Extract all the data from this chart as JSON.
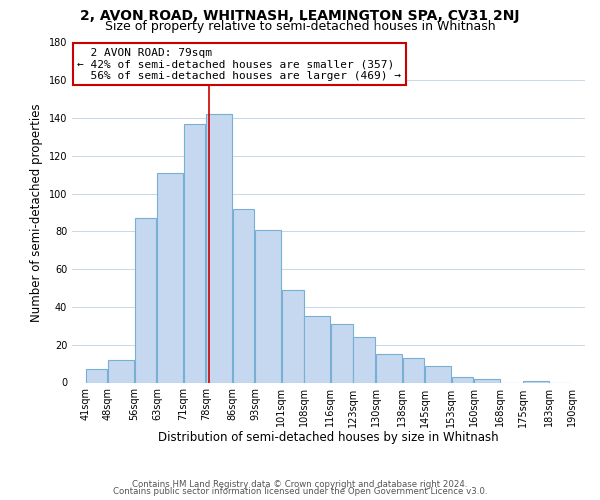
{
  "title": "2, AVON ROAD, WHITNASH, LEAMINGTON SPA, CV31 2NJ",
  "subtitle": "Size of property relative to semi-detached houses in Whitnash",
  "xlabel": "Distribution of semi-detached houses by size in Whitnash",
  "ylabel": "Number of semi-detached properties",
  "footer_lines": [
    "Contains HM Land Registry data © Crown copyright and database right 2024.",
    "Contains public sector information licensed under the Open Government Licence v3.0."
  ],
  "bar_left_edges": [
    41,
    48,
    56,
    63,
    71,
    78,
    86,
    93,
    101,
    108,
    116,
    123,
    130,
    138,
    145,
    153,
    160,
    168,
    175,
    183
  ],
  "bar_widths": [
    7,
    8,
    7,
    8,
    7,
    8,
    7,
    8,
    7,
    8,
    7,
    7,
    8,
    7,
    8,
    7,
    8,
    7,
    8,
    7
  ],
  "bar_heights": [
    7,
    12,
    87,
    111,
    137,
    142,
    92,
    81,
    49,
    35,
    31,
    24,
    15,
    13,
    9,
    3,
    2,
    0,
    1,
    0
  ],
  "bar_color": "#c5d8f0",
  "bar_edge_color": "#7aafd4",
  "marker_x": 79,
  "marker_label": "2 AVON ROAD: 79sqm",
  "pct_smaller": 42,
  "count_smaller": 357,
  "pct_larger": 56,
  "count_larger": 469,
  "marker_line_color": "#cc0000",
  "annotation_box_edge_color": "#cc0000",
  "ylim": [
    0,
    180
  ],
  "yticks": [
    0,
    20,
    40,
    60,
    80,
    100,
    120,
    140,
    160,
    180
  ],
  "xtick_labels": [
    "41sqm",
    "48sqm",
    "56sqm",
    "63sqm",
    "71sqm",
    "78sqm",
    "86sqm",
    "93sqm",
    "101sqm",
    "108sqm",
    "116sqm",
    "123sqm",
    "130sqm",
    "138sqm",
    "145sqm",
    "153sqm",
    "160sqm",
    "168sqm",
    "175sqm",
    "183sqm",
    "190sqm"
  ],
  "xtick_positions": [
    41,
    48,
    56,
    63,
    71,
    78,
    86,
    93,
    101,
    108,
    116,
    123,
    130,
    138,
    145,
    153,
    160,
    168,
    175,
    183,
    190
  ],
  "title_fontsize": 10,
  "subtitle_fontsize": 9,
  "axis_label_fontsize": 8.5,
  "tick_fontsize": 7,
  "annotation_fontsize": 8,
  "background_color": "#ffffff",
  "grid_color": "#c8d8e8"
}
